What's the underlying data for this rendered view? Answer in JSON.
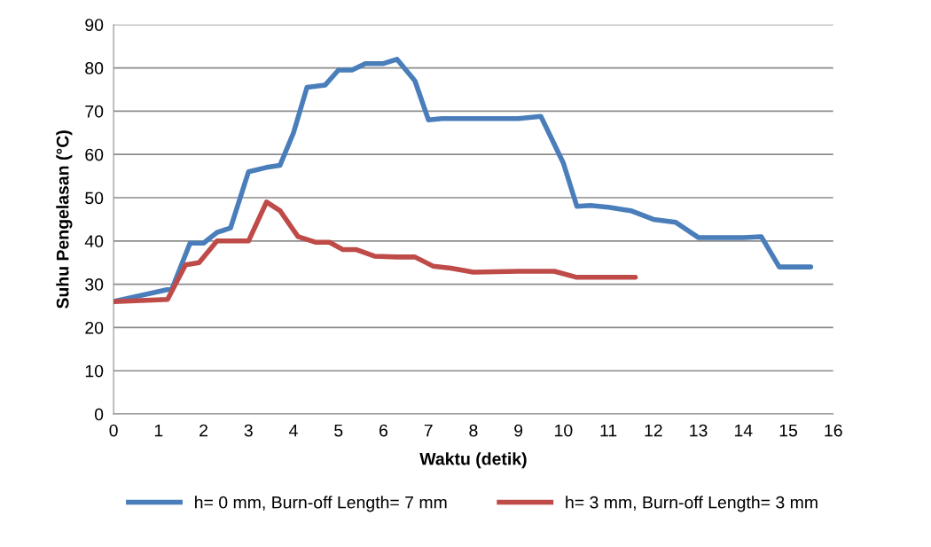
{
  "chart_data": {
    "type": "line",
    "xlabel": "Waktu (detik)",
    "ylabel": "Suhu Pengelasan (°C)",
    "xlim": [
      0,
      16
    ],
    "xticks": [
      0,
      1,
      2,
      3,
      4,
      5,
      6,
      7,
      8,
      9,
      10,
      11,
      12,
      13,
      14,
      15,
      16
    ],
    "ylim": [
      0,
      90
    ],
    "yticks": [
      0,
      10,
      20,
      30,
      40,
      50,
      60,
      70,
      80,
      90
    ],
    "grid": "y",
    "legend": "bottom",
    "line_style": "solid",
    "marker": "none",
    "series": [
      {
        "name": "h= 0 mm, Burn-off Length= 7 mm",
        "color": "#4a7ebb",
        "x": [
          0,
          1.3,
          1.7,
          2,
          2.3,
          2.6,
          3,
          3.4,
          3.7,
          4,
          4.3,
          4.7,
          5,
          5.3,
          5.6,
          6,
          6.3,
          6.7,
          7,
          7.3,
          8,
          9,
          9.5,
          10,
          10.3,
          10.6,
          11,
          11.5,
          12,
          12.5,
          13,
          14,
          14.4,
          14.8,
          15,
          15.5
        ],
        "values": [
          26,
          29,
          39.5,
          39.5,
          42,
          43,
          56,
          57,
          57.5,
          65,
          75.5,
          76,
          79.5,
          79.5,
          81,
          81,
          82,
          77,
          68,
          68.3,
          68.3,
          68.3,
          68.8,
          58,
          48,
          48.2,
          47.8,
          47,
          45,
          44.3,
          40.8,
          40.8,
          41,
          34,
          34,
          34
        ]
      },
      {
        "name": "h= 3 mm, Burn-off Length= 3 mm",
        "color": "#be4b48",
        "x": [
          0,
          1.2,
          1.6,
          1.9,
          2.3,
          2.6,
          3,
          3.4,
          3.7,
          4.1,
          4.5,
          4.8,
          5.1,
          5.4,
          5.8,
          6.3,
          6.7,
          7.1,
          7.5,
          8,
          9,
          9.8,
          10.3,
          11,
          11.6
        ],
        "values": [
          26,
          26.5,
          34.5,
          35,
          40,
          40,
          40,
          49,
          47,
          41,
          39.7,
          39.7,
          38,
          38,
          36.5,
          36.3,
          36.3,
          34.2,
          33.7,
          32.8,
          33,
          33,
          31.6,
          31.6,
          31.6
        ]
      }
    ]
  }
}
